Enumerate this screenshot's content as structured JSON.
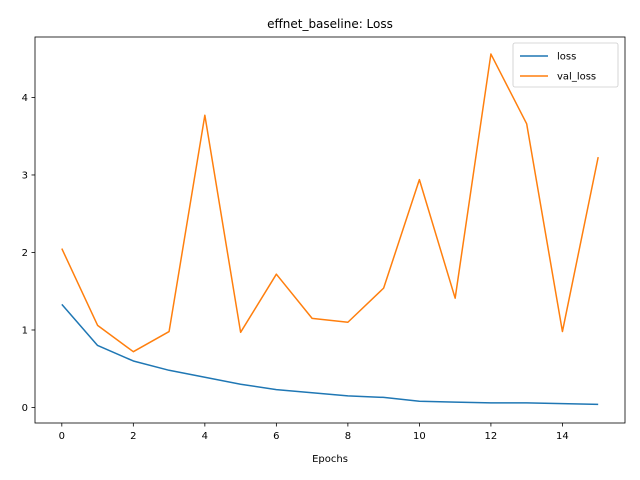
{
  "chart_data": {
    "type": "line",
    "title": "effnet_baseline: Loss",
    "xlabel": "Epochs",
    "ylabel": "",
    "x": [
      0,
      1,
      2,
      3,
      4,
      5,
      6,
      7,
      8,
      9,
      10,
      11,
      12,
      13,
      14,
      15
    ],
    "xlim": [
      -0.75,
      15.75
    ],
    "ylim": [
      -0.2,
      4.78
    ],
    "xticks": [
      0,
      2,
      4,
      6,
      8,
      10,
      12,
      14
    ],
    "yticks": [
      0,
      1,
      2,
      3,
      4
    ],
    "grid": false,
    "legend_position": "top-right",
    "series": [
      {
        "name": "loss",
        "color": "#1f77b4",
        "values": [
          1.33,
          0.8,
          0.6,
          0.48,
          0.39,
          0.3,
          0.23,
          0.19,
          0.15,
          0.13,
          0.08,
          0.07,
          0.06,
          0.06,
          0.05,
          0.04
        ]
      },
      {
        "name": "val_loss",
        "color": "#ff7f0e",
        "values": [
          2.05,
          1.06,
          0.72,
          0.98,
          3.77,
          0.97,
          1.72,
          1.15,
          1.1,
          1.54,
          2.94,
          1.41,
          4.56,
          3.66,
          0.98,
          3.23
        ]
      }
    ]
  }
}
